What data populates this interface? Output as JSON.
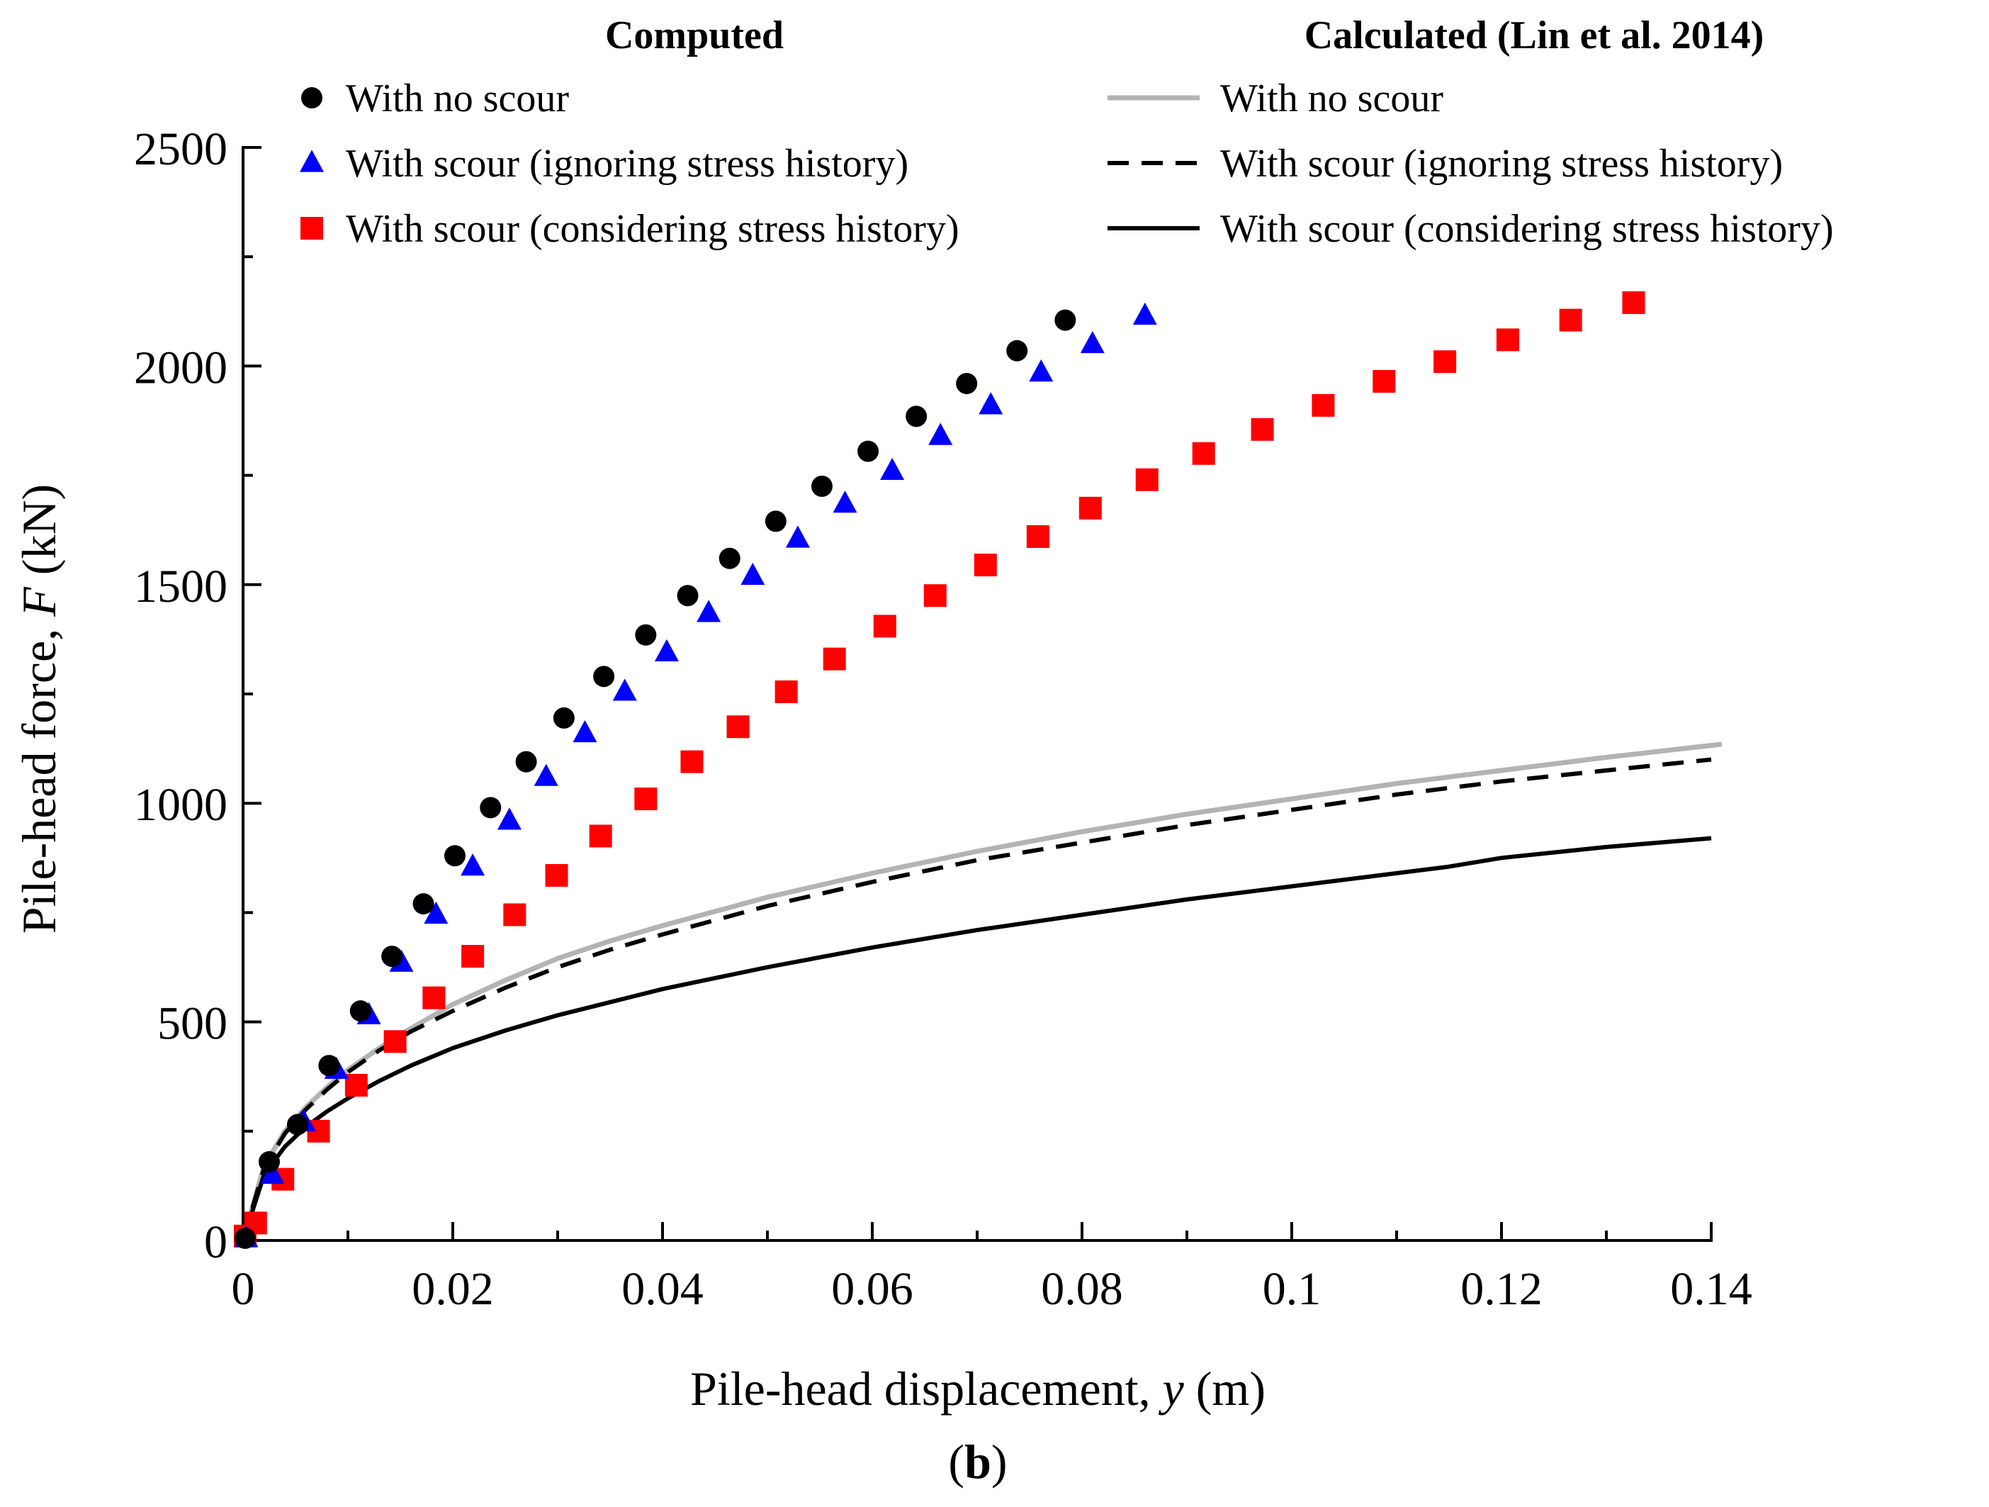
{
  "chart_data": {
    "type": "scatter",
    "panel_label": "(b)",
    "xlabel": {
      "prefix": "Pile-head displacement, ",
      "var": "y",
      "suffix": " (m)"
    },
    "ylabel": {
      "prefix": "Pile-head force, ",
      "var": "F",
      "suffix": " (kN)"
    },
    "xlim": [
      0,
      0.14
    ],
    "ylim": [
      0,
      2500
    ],
    "x_ticks": [
      0,
      0.02,
      0.04,
      0.06,
      0.08,
      0.1,
      0.12,
      0.14
    ],
    "x_tick_labels": [
      "0",
      "0.02",
      "0.04",
      "0.06",
      "0.08",
      "0.1",
      "0.12",
      "0.14"
    ],
    "y_ticks": [
      0,
      500,
      1000,
      1500,
      2000,
      2500
    ],
    "y_tick_labels": [
      "0",
      "500",
      "1000",
      "1500",
      "2000",
      "2500"
    ],
    "legend": {
      "computed_heading": "Computed",
      "calculated_heading": "Calculated (Lin et al. 2014)",
      "placement": "top"
    },
    "colors": {
      "black": "#000000",
      "blue": "#0000ff",
      "red": "#ff0000",
      "gray": "#b3b3b3"
    },
    "series": [
      {
        "group": "Computed",
        "name": "With no scour",
        "marker": "circle",
        "color": "#000000",
        "x": [
          0.0002,
          0.0025,
          0.0052,
          0.0082,
          0.0112,
          0.0142,
          0.0172,
          0.0202,
          0.0236,
          0.027,
          0.0306,
          0.0344,
          0.0384,
          0.0424,
          0.0464,
          0.0508,
          0.0552,
          0.0596,
          0.0642,
          0.069,
          0.0738,
          0.0784
        ],
        "y": [
          5,
          180,
          265,
          400,
          525,
          650,
          770,
          880,
          990,
          1095,
          1195,
          1290,
          1385,
          1475,
          1560,
          1645,
          1725,
          1805,
          1885,
          1960,
          2035,
          2105
        ]
      },
      {
        "group": "Computed",
        "name": "With scour (ignoring stress history)",
        "marker": "triangle",
        "color": "#0000ff",
        "x": [
          0.0003,
          0.0028,
          0.0058,
          0.0089,
          0.012,
          0.0151,
          0.0184,
          0.0219,
          0.0254,
          0.0289,
          0.0326,
          0.0364,
          0.0404,
          0.0444,
          0.0486,
          0.0529,
          0.0574,
          0.0619,
          0.0665,
          0.0713,
          0.0761,
          0.081,
          0.086
        ],
        "y": [
          5,
          150,
          270,
          390,
          515,
          635,
          745,
          855,
          960,
          1060,
          1160,
          1255,
          1345,
          1435,
          1520,
          1605,
          1685,
          1760,
          1840,
          1910,
          1985,
          2050,
          2115
        ]
      },
      {
        "group": "Computed",
        "name": "With scour (considering stress history)",
        "marker": "square",
        "color": "#ff0000",
        "x": [
          0.0002,
          0.0012,
          0.0038,
          0.0072,
          0.0108,
          0.0145,
          0.0182,
          0.0219,
          0.0259,
          0.0299,
          0.0341,
          0.0384,
          0.0428,
          0.0472,
          0.0518,
          0.0564,
          0.0612,
          0.066,
          0.0708,
          0.0758,
          0.0808,
          0.0862,
          0.0916,
          0.0972,
          0.103,
          0.1088,
          0.1146,
          0.1206,
          0.1266,
          0.1326
        ],
        "y": [
          10,
          40,
          140,
          250,
          355,
          455,
          555,
          650,
          745,
          835,
          925,
          1010,
          1095,
          1175,
          1255,
          1330,
          1405,
          1475,
          1545,
          1610,
          1675,
          1740,
          1800,
          1855,
          1910,
          1965,
          2010,
          2060,
          2105,
          2145
        ]
      },
      {
        "group": "Calculated (Lin et al. 2014)",
        "name": "With no scour",
        "marker": "line",
        "style": "solid",
        "color": "#b3b3b3",
        "x": [
          0,
          0.002,
          0.004,
          0.006,
          0.008,
          0.01,
          0.013,
          0.016,
          0.02,
          0.025,
          0.03,
          0.035,
          0.04,
          0.05,
          0.06,
          0.07,
          0.08,
          0.09,
          0.1,
          0.11,
          0.12,
          0.13,
          0.141
        ],
        "y": [
          0,
          170,
          250,
          305,
          350,
          390,
          440,
          485,
          540,
          595,
          645,
          685,
          720,
          785,
          840,
          890,
          935,
          975,
          1010,
          1045,
          1075,
          1105,
          1135
        ]
      },
      {
        "group": "Calculated (Lin et al. 2014)",
        "name": "With scour (ignoring stress history)",
        "marker": "line",
        "style": "dashed",
        "color": "#000000",
        "x": [
          0,
          0.002,
          0.004,
          0.006,
          0.008,
          0.01,
          0.013,
          0.016,
          0.02,
          0.025,
          0.03,
          0.035,
          0.04,
          0.05,
          0.06,
          0.07,
          0.08,
          0.09,
          0.1,
          0.11,
          0.12,
          0.13,
          0.14
        ],
        "y": [
          0,
          165,
          245,
          300,
          345,
          385,
          435,
          478,
          525,
          578,
          625,
          665,
          700,
          765,
          820,
          870,
          910,
          950,
          985,
          1020,
          1050,
          1075,
          1100
        ]
      },
      {
        "group": "Calculated (Lin et al. 2014)",
        "name": "With scour  (considering stress history)",
        "marker": "line",
        "style": "solid",
        "color": "#000000",
        "x": [
          0,
          0.002,
          0.004,
          0.006,
          0.008,
          0.01,
          0.013,
          0.016,
          0.02,
          0.025,
          0.03,
          0.035,
          0.04,
          0.05,
          0.06,
          0.07,
          0.08,
          0.09,
          0.1,
          0.11,
          0.115,
          0.12,
          0.13,
          0.14
        ],
        "y": [
          0,
          150,
          215,
          260,
          295,
          325,
          365,
          400,
          440,
          480,
          515,
          545,
          575,
          625,
          670,
          710,
          745,
          780,
          810,
          840,
          855,
          875,
          900,
          920
        ]
      }
    ]
  }
}
